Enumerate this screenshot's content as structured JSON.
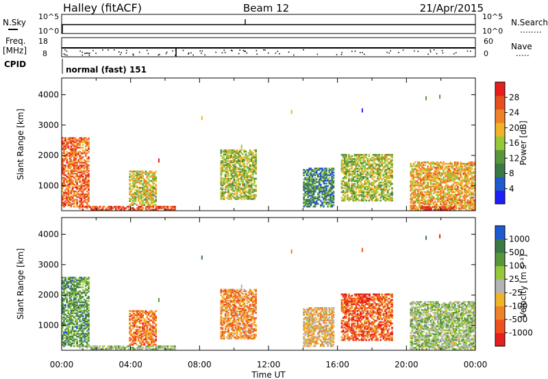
{
  "header": {
    "station": "Halley (fitACF)",
    "beam": "Beam 12",
    "date": "21/Apr/2015"
  },
  "panel_nsky": {
    "left_label": "N.Sky",
    "right_label": "N.Search",
    "ticks_left": [
      "10^5",
      "10^0"
    ],
    "ticks_right": [
      "10^5",
      "10^0"
    ]
  },
  "panel_freq": {
    "left_label_line1": "Freq.",
    "left_label_line2": "[MHz]",
    "right_label": "Nave",
    "ticks_left": [
      "18",
      "8"
    ],
    "ticks_right": [
      "60",
      "0"
    ]
  },
  "cpid": {
    "label": "CPID",
    "value": "normal (fast) 151"
  },
  "colors": {
    "power": [
      "#1e1efa",
      "#1e5ad2",
      "#3c7846",
      "#5a963c",
      "#96c83c",
      "#f0b428",
      "#f08228",
      "#e6501e",
      "#e61e1e"
    ],
    "velocity": [
      "#e61e1e",
      "#f0501e",
      "#f08228",
      "#f0b428",
      "#b4b4b4",
      "#96c83c",
      "#5a963c",
      "#3c7846",
      "#1e5ad2"
    ]
  },
  "chart_data": [
    {
      "type": "heatmap",
      "quantity": "Power",
      "xlabel": "",
      "ylabel": "Slant Range [km]",
      "xlim": [
        "00:00",
        "24:00"
      ],
      "ylim": [
        180,
        4550
      ],
      "yticks": [
        1000,
        2000,
        3000,
        4000
      ],
      "colorbar_label": "Power [dB]",
      "colorbar_ticks": [
        "4",
        "8",
        "12",
        "16",
        "20",
        "24",
        "28"
      ],
      "regions": [
        {
          "t0": 0.0,
          "t1": 1.6,
          "r0": 300,
          "r1": 2600,
          "level": 0.78
        },
        {
          "t0": 1.0,
          "t1": 6.6,
          "r0": 200,
          "r1": 340,
          "level": 0.85
        },
        {
          "t0": 3.9,
          "t1": 5.5,
          "r0": 350,
          "r1": 1500,
          "level": 0.55
        },
        {
          "t0": 9.2,
          "t1": 11.3,
          "r0": 550,
          "r1": 2200,
          "level": 0.5
        },
        {
          "t0": 14.0,
          "t1": 15.8,
          "r0": 300,
          "r1": 1600,
          "level": 0.3
        },
        {
          "t0": 16.2,
          "t1": 19.2,
          "r0": 500,
          "r1": 2050,
          "level": 0.5
        },
        {
          "t0": 20.2,
          "t1": 24.0,
          "r0": 200,
          "r1": 1800,
          "level": 0.65
        },
        {
          "t0": 20.8,
          "t1": 22.8,
          "r0": 200,
          "r1": 330,
          "level": 0.95
        }
      ]
    },
    {
      "type": "heatmap",
      "quantity": "Velocity",
      "xlabel": "Time UT",
      "ylabel": "Slant Range [km]",
      "xlim": [
        "00:00",
        "24:00"
      ],
      "ylim": [
        180,
        4550
      ],
      "yticks": [
        1000,
        2000,
        3000,
        4000
      ],
      "xticks": [
        "00:00",
        "04:00",
        "08:00",
        "12:00",
        "16:00",
        "20:00",
        "00:00"
      ],
      "colorbar_label": "Velocity [m s⁻¹]",
      "colorbar_ticks": [
        "-1000",
        "-500",
        "-100",
        "-25",
        "25",
        "100",
        "500",
        "1000"
      ],
      "regions": [
        {
          "t0": 0.0,
          "t1": 1.6,
          "r0": 300,
          "r1": 2600,
          "level": 0.75
        },
        {
          "t0": 1.0,
          "t1": 6.6,
          "r0": 200,
          "r1": 340,
          "level": 0.6
        },
        {
          "t0": 3.9,
          "t1": 5.5,
          "r0": 350,
          "r1": 1500,
          "level": 0.25
        },
        {
          "t0": 9.2,
          "t1": 11.3,
          "r0": 550,
          "r1": 2200,
          "level": 0.3
        },
        {
          "t0": 14.0,
          "t1": 15.8,
          "r0": 300,
          "r1": 1600,
          "level": 0.4
        },
        {
          "t0": 16.2,
          "t1": 19.2,
          "r0": 500,
          "r1": 2050,
          "level": 0.2
        },
        {
          "t0": 17.2,
          "t1": 17.9,
          "r0": 1750,
          "r1": 2050,
          "level": 0.05
        },
        {
          "t0": 20.2,
          "t1": 24.0,
          "r0": 200,
          "r1": 1800,
          "level": 0.6
        }
      ]
    }
  ]
}
